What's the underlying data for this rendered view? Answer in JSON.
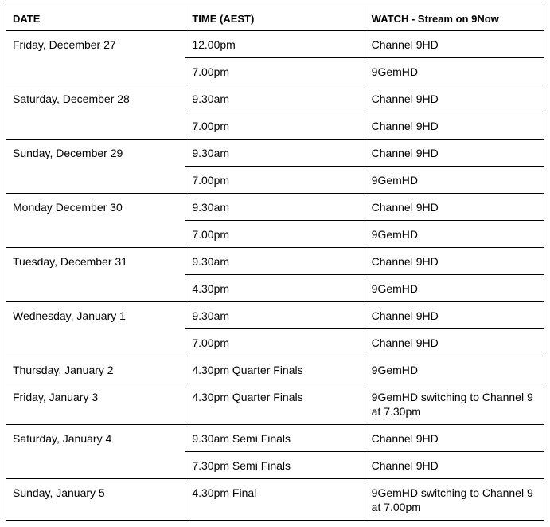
{
  "headers": [
    "DATE",
    "TIME (AEST)",
    "WATCH - Stream on 9Now"
  ],
  "schedule": [
    {
      "date": "Friday, December 27",
      "slots": [
        {
          "time": "12.00pm",
          "watch": "Channel 9HD"
        },
        {
          "time": "7.00pm",
          "watch": "9GemHD"
        }
      ]
    },
    {
      "date": "Saturday, December 28",
      "slots": [
        {
          "time": "9.30am",
          "watch": "Channel 9HD"
        },
        {
          "time": "7.00pm",
          "watch": "Channel 9HD"
        }
      ]
    },
    {
      "date": "Sunday, December 29",
      "slots": [
        {
          "time": "9.30am",
          "watch": "Channel 9HD"
        },
        {
          "time": "7.00pm",
          "watch": "9GemHD"
        }
      ]
    },
    {
      "date": "Monday December 30",
      "slots": [
        {
          "time": "9.30am",
          "watch": "Channel 9HD"
        },
        {
          "time": "7.00pm",
          "watch": "9GemHD"
        }
      ]
    },
    {
      "date": "Tuesday, December 31",
      "slots": [
        {
          "time": "9.30am",
          "watch": "Channel 9HD"
        },
        {
          "time": "4.30pm",
          "watch": "9GemHD"
        }
      ]
    },
    {
      "date": "Wednesday, January 1",
      "slots": [
        {
          "time": "9.30am",
          "watch": "Channel 9HD"
        },
        {
          "time": "7.00pm",
          "watch": "Channel 9HD"
        }
      ]
    },
    {
      "date": "Thursday, January 2",
      "slots": [
        {
          "time": "4.30pm Quarter Finals",
          "watch": "9GemHD"
        }
      ]
    },
    {
      "date": "Friday, January 3",
      "slots": [
        {
          "time": "4.30pm Quarter Finals",
          "watch": "9GemHD switching to Channel 9 at 7.30pm"
        }
      ]
    },
    {
      "date": "Saturday, January 4",
      "slots": [
        {
          "time": "9.30am Semi Finals",
          "watch": "Channel 9HD"
        },
        {
          "time": "7.30pm Semi Finals",
          "watch": "Channel 9HD"
        }
      ]
    },
    {
      "date": "Sunday, January 5",
      "slots": [
        {
          "time": "4.30pm Final",
          "watch": "9GemHD switching to Channel 9 at 7.00pm"
        }
      ]
    }
  ]
}
